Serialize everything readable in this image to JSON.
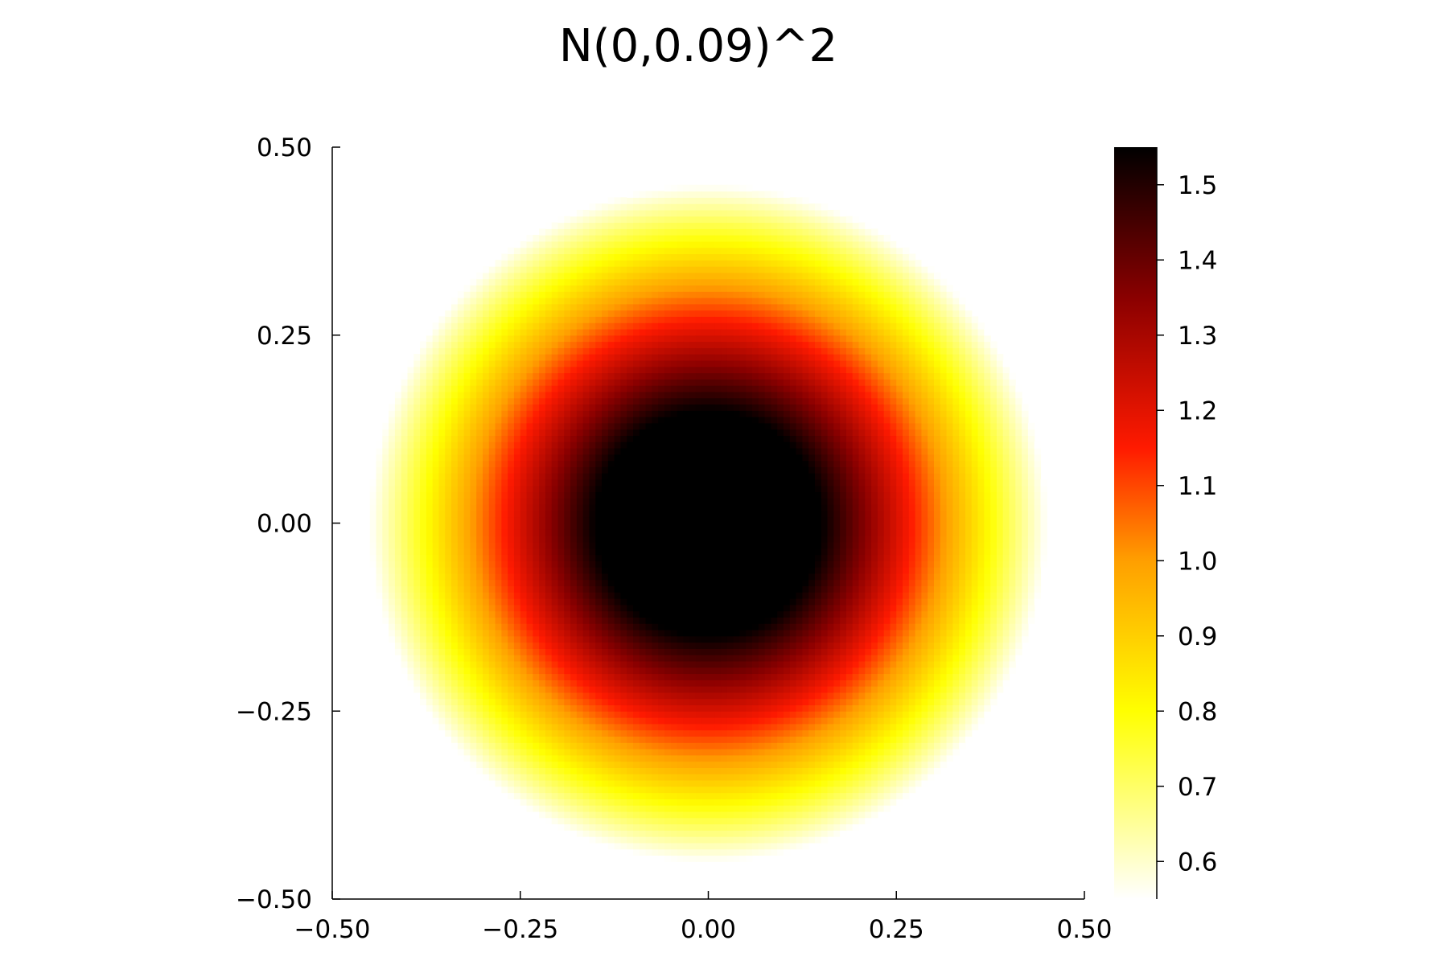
{
  "chart_data": {
    "type": "heatmap",
    "title": "N(0,0.09)^2",
    "xlabel": "",
    "ylabel": "",
    "xlim": [
      -0.5,
      0.5
    ],
    "ylim": [
      -0.5,
      0.5
    ],
    "x_ticks": [
      "−0.50",
      "−0.25",
      "0.00",
      "0.25",
      "0.50"
    ],
    "x_tick_values": [
      -0.5,
      -0.25,
      0.0,
      0.25,
      0.5
    ],
    "y_ticks": [
      "−0.50",
      "−0.25",
      "0.00",
      "0.25",
      "0.50"
    ],
    "y_tick_values": [
      -0.5,
      -0.25,
      0.0,
      0.25,
      0.5
    ],
    "colorbar": {
      "colormap": "heat",
      "range": [
        0.55,
        1.55
      ],
      "ticks": [
        "0.6",
        "0.7",
        "0.8",
        "0.9",
        "1.0",
        "1.1",
        "1.2",
        "1.3",
        "1.4",
        "1.5"
      ],
      "tick_values": [
        0.6,
        0.7,
        0.8,
        0.9,
        1.0,
        1.1,
        1.2,
        1.3,
        1.4,
        1.5
      ]
    },
    "field": {
      "support_radius": 0.45,
      "center_value": 1.55,
      "edge_value": 0.55,
      "flat_radius": 0.15,
      "grid_resolution": 120
    },
    "grid": false,
    "legend": "none"
  }
}
